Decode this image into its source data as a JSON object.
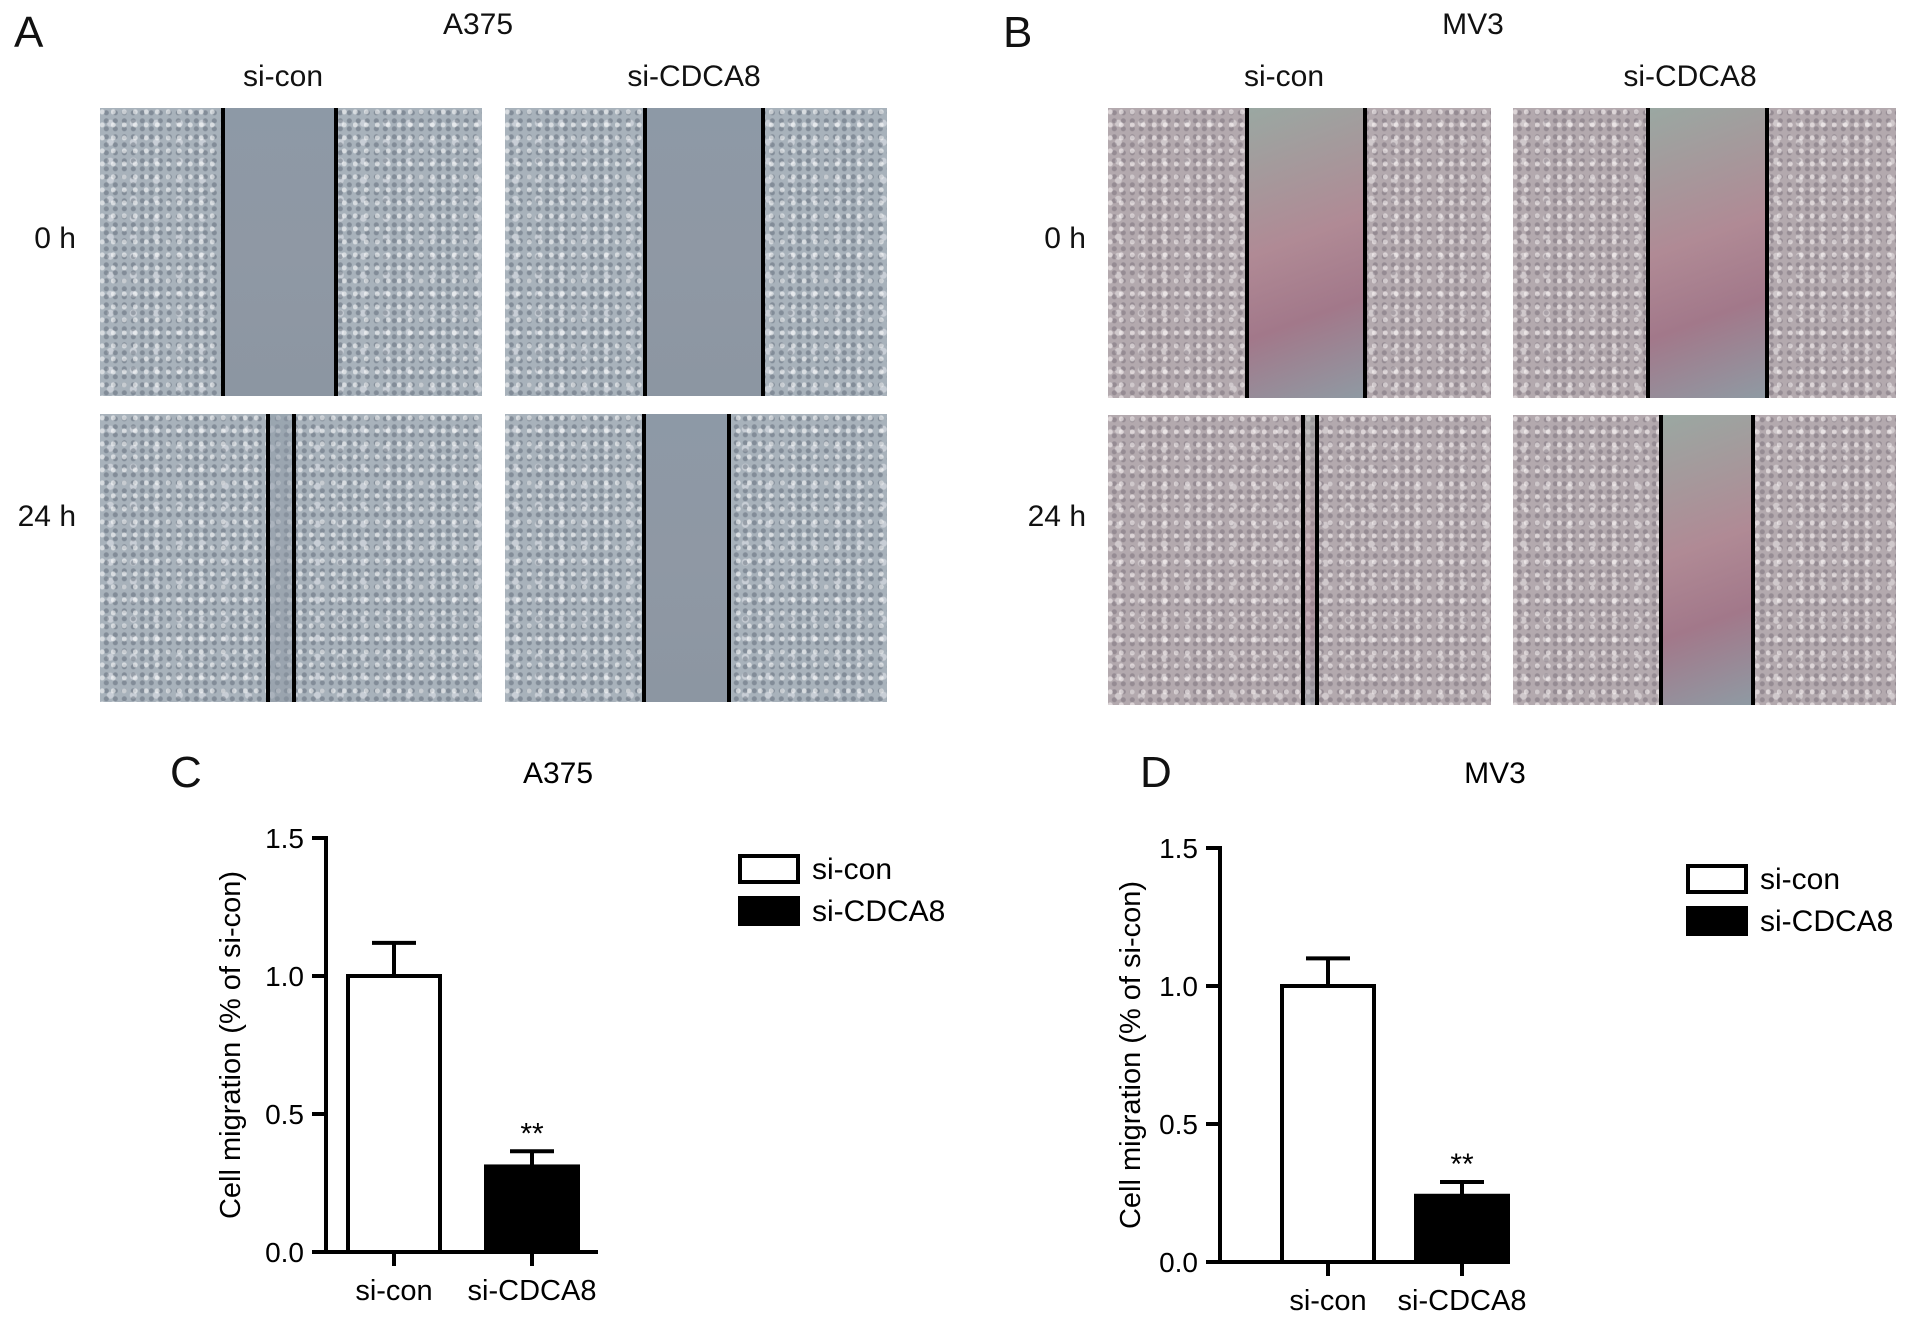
{
  "panels": {
    "A": {
      "label": "A",
      "title": "A375",
      "columns": [
        "si-con",
        "si-CDCA8"
      ],
      "rows": [
        "0 h",
        "24 h"
      ]
    },
    "B": {
      "label": "B",
      "title": "MV3",
      "columns": [
        "si-con",
        "si-CDCA8"
      ],
      "rows": [
        "0 h",
        "24 h"
      ]
    },
    "C": {
      "label": "C"
    },
    "D": {
      "label": "D"
    }
  },
  "chart_data": [
    {
      "type": "bar",
      "panel": "C",
      "title": "A375",
      "ylabel": "Cell migration (% of si-con)",
      "xlabel": "",
      "categories": [
        "si-con",
        "si-CDCA8"
      ],
      "values": [
        1.0,
        0.31
      ],
      "error": [
        0.12,
        0.055
      ],
      "significance": [
        "",
        "**"
      ],
      "ylim": [
        0.0,
        1.5
      ],
      "yticks": [
        "0.0",
        "0.5",
        "1.0",
        "1.5"
      ],
      "legend": [
        "si-con",
        "si-CDCA8"
      ],
      "legend_position": "right",
      "colors": [
        "#ffffff",
        "#000000"
      ]
    },
    {
      "type": "bar",
      "panel": "D",
      "title": "MV3",
      "ylabel": "Cell migration (% of si-con)",
      "xlabel": "",
      "categories": [
        "si-con",
        "si-CDCA8"
      ],
      "values": [
        1.0,
        0.24
      ],
      "error": [
        0.1,
        0.05
      ],
      "significance": [
        "",
        "**"
      ],
      "ylim": [
        0.0,
        1.5
      ],
      "yticks": [
        "0.0",
        "0.5",
        "1.0",
        "1.5"
      ],
      "legend": [
        "si-con",
        "si-CDCA8"
      ],
      "legend_position": "right",
      "colors": [
        "#ffffff",
        "#000000"
      ]
    }
  ]
}
